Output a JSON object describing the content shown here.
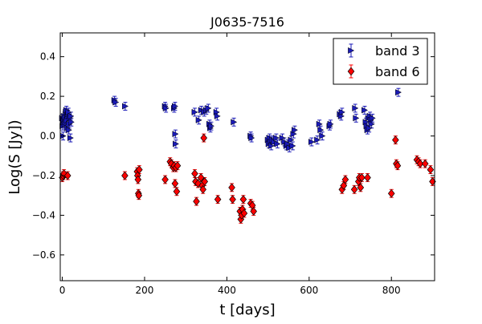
{
  "chart_data": {
    "type": "scatter",
    "title": "J0635-7516",
    "xlabel": "t [days]",
    "ylabel": "Log(S [Jy])",
    "xlim": [
      -5,
      905
    ],
    "ylim": [
      -0.73,
      0.52
    ],
    "xticks": [
      0,
      200,
      400,
      600,
      800
    ],
    "yticks": [
      -0.6,
      -0.4,
      -0.2,
      0.0,
      0.2,
      0.4
    ],
    "xtick_labels": [
      "0",
      "200",
      "400",
      "600",
      "800"
    ],
    "ytick_labels": [
      "−0.6",
      "−0.4",
      "−0.2",
      "0.0",
      "0.2",
      "0.4"
    ],
    "grid": false,
    "legend_position": "top-right",
    "series": [
      {
        "name": "band 3",
        "marker": "triangle-right",
        "color": "#1a1ab8",
        "error": 0.02,
        "points": [
          [
            0,
            0.09
          ],
          [
            1,
            0.05
          ],
          [
            2,
            0.0
          ],
          [
            3,
            0.07
          ],
          [
            4,
            0.08
          ],
          [
            5,
            0.1
          ],
          [
            6,
            0.06
          ],
          [
            7,
            0.09
          ],
          [
            8,
            0.07
          ],
          [
            9,
            0.12
          ],
          [
            10,
            0.13
          ],
          [
            11,
            0.08
          ],
          [
            12,
            0.04
          ],
          [
            13,
            0.1
          ],
          [
            14,
            0.11
          ],
          [
            15,
            0.12
          ],
          [
            16,
            0.03
          ],
          [
            17,
            0.06
          ],
          [
            18,
            0.09
          ],
          [
            20,
            -0.01
          ],
          [
            21,
            0.1
          ],
          [
            22,
            0.07
          ],
          [
            127,
            0.18
          ],
          [
            130,
            0.17
          ],
          [
            153,
            0.15
          ],
          [
            250,
            0.15
          ],
          [
            252,
            0.14
          ],
          [
            272,
            0.14
          ],
          [
            274,
            0.15
          ],
          [
            275,
            0.01
          ],
          [
            276,
            -0.04
          ],
          [
            322,
            0.12
          ],
          [
            332,
            0.08
          ],
          [
            338,
            0.13
          ],
          [
            345,
            0.12
          ],
          [
            350,
            0.13
          ],
          [
            355,
            0.14
          ],
          [
            358,
            0.06
          ],
          [
            360,
            0.04
          ],
          [
            362,
            0.05
          ],
          [
            375,
            0.12
          ],
          [
            377,
            0.1
          ],
          [
            417,
            0.07
          ],
          [
            458,
            0.0
          ],
          [
            460,
            -0.01
          ],
          [
            500,
            -0.02
          ],
          [
            502,
            -0.04
          ],
          [
            504,
            -0.01
          ],
          [
            506,
            -0.03
          ],
          [
            508,
            -0.05
          ],
          [
            510,
            -0.02
          ],
          [
            515,
            -0.03
          ],
          [
            520,
            -0.01
          ],
          [
            523,
            -0.04
          ],
          [
            535,
            -0.01
          ],
          [
            540,
            -0.03
          ],
          [
            545,
            -0.05
          ],
          [
            548,
            -0.04
          ],
          [
            552,
            -0.06
          ],
          [
            556,
            -0.02
          ],
          [
            560,
            -0.05
          ],
          [
            562,
            0.01
          ],
          [
            565,
            0.03
          ],
          [
            606,
            -0.03
          ],
          [
            620,
            -0.02
          ],
          [
            625,
            0.06
          ],
          [
            628,
            0.03
          ],
          [
            632,
            0.0
          ],
          [
            650,
            0.05
          ],
          [
            652,
            0.06
          ],
          [
            675,
            0.11
          ],
          [
            678,
            0.1
          ],
          [
            680,
            0.12
          ],
          [
            712,
            0.14
          ],
          [
            714,
            0.09
          ],
          [
            735,
            0.13
          ],
          [
            738,
            0.07
          ],
          [
            740,
            0.05
          ],
          [
            742,
            0.03
          ],
          [
            744,
            0.09
          ],
          [
            746,
            0.04
          ],
          [
            748,
            0.1
          ],
          [
            750,
            0.08
          ],
          [
            752,
            0.06
          ],
          [
            754,
            0.09
          ],
          [
            817,
            0.22
          ]
        ]
      },
      {
        "name": "band 6",
        "marker": "diamond",
        "color": "#ff0000",
        "error": 0.02,
        "points": [
          [
            0,
            -0.21
          ],
          [
            2,
            -0.2
          ],
          [
            4,
            -0.19
          ],
          [
            13,
            -0.2
          ],
          [
            152,
            -0.2
          ],
          [
            182,
            -0.18
          ],
          [
            183,
            -0.2
          ],
          [
            184,
            -0.22
          ],
          [
            185,
            -0.29
          ],
          [
            186,
            -0.3
          ],
          [
            187,
            -0.17
          ],
          [
            250,
            -0.22
          ],
          [
            262,
            -0.13
          ],
          [
            265,
            -0.14
          ],
          [
            270,
            -0.16
          ],
          [
            272,
            -0.15
          ],
          [
            274,
            -0.24
          ],
          [
            276,
            -0.16
          ],
          [
            278,
            -0.28
          ],
          [
            280,
            -0.15
          ],
          [
            322,
            -0.19
          ],
          [
            324,
            -0.23
          ],
          [
            326,
            -0.33
          ],
          [
            330,
            -0.24
          ],
          [
            337,
            -0.21
          ],
          [
            340,
            -0.25
          ],
          [
            342,
            -0.27
          ],
          [
            344,
            -0.01
          ],
          [
            346,
            -0.23
          ],
          [
            378,
            -0.32
          ],
          [
            412,
            -0.26
          ],
          [
            414,
            -0.32
          ],
          [
            432,
            -0.38
          ],
          [
            434,
            -0.42
          ],
          [
            436,
            -0.4
          ],
          [
            438,
            -0.37
          ],
          [
            440,
            -0.32
          ],
          [
            442,
            -0.39
          ],
          [
            458,
            -0.34
          ],
          [
            462,
            -0.35
          ],
          [
            465,
            -0.38
          ],
          [
            680,
            -0.27
          ],
          [
            684,
            -0.25
          ],
          [
            688,
            -0.22
          ],
          [
            710,
            -0.27
          ],
          [
            720,
            -0.23
          ],
          [
            722,
            -0.21
          ],
          [
            725,
            -0.26
          ],
          [
            728,
            -0.21
          ],
          [
            742,
            -0.21
          ],
          [
            800,
            -0.29
          ],
          [
            810,
            -0.02
          ],
          [
            812,
            -0.14
          ],
          [
            815,
            -0.15
          ],
          [
            862,
            -0.12
          ],
          [
            866,
            -0.13
          ],
          [
            870,
            -0.14
          ],
          [
            882,
            -0.14
          ],
          [
            895,
            -0.17
          ],
          [
            900,
            -0.23
          ]
        ]
      }
    ]
  }
}
